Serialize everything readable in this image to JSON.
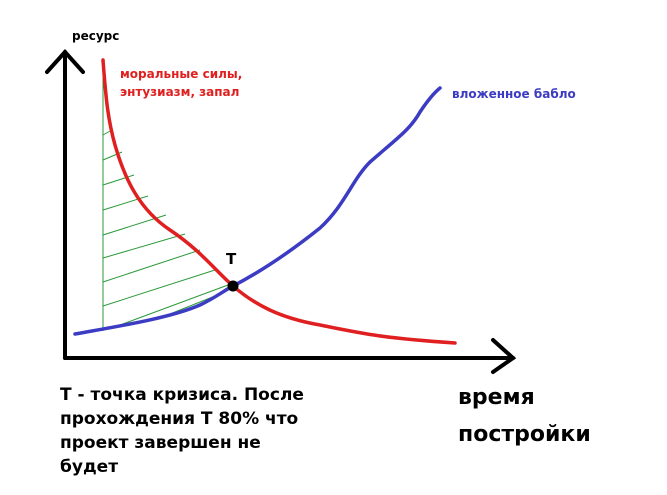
{
  "axes": {
    "y_label": "ресурс",
    "x_label": [
      "время",
      "постройки"
    ]
  },
  "curves": {
    "morale": {
      "label": [
        "моральные силы,",
        "энтузиазм, запал"
      ]
    },
    "money": {
      "label": "вложенное бабло"
    }
  },
  "point": {
    "label": "T"
  },
  "caption": [
    "Т - точка кризиса. После",
    "прохождения Т 80% что",
    "проект завершен не",
    "будет"
  ]
}
